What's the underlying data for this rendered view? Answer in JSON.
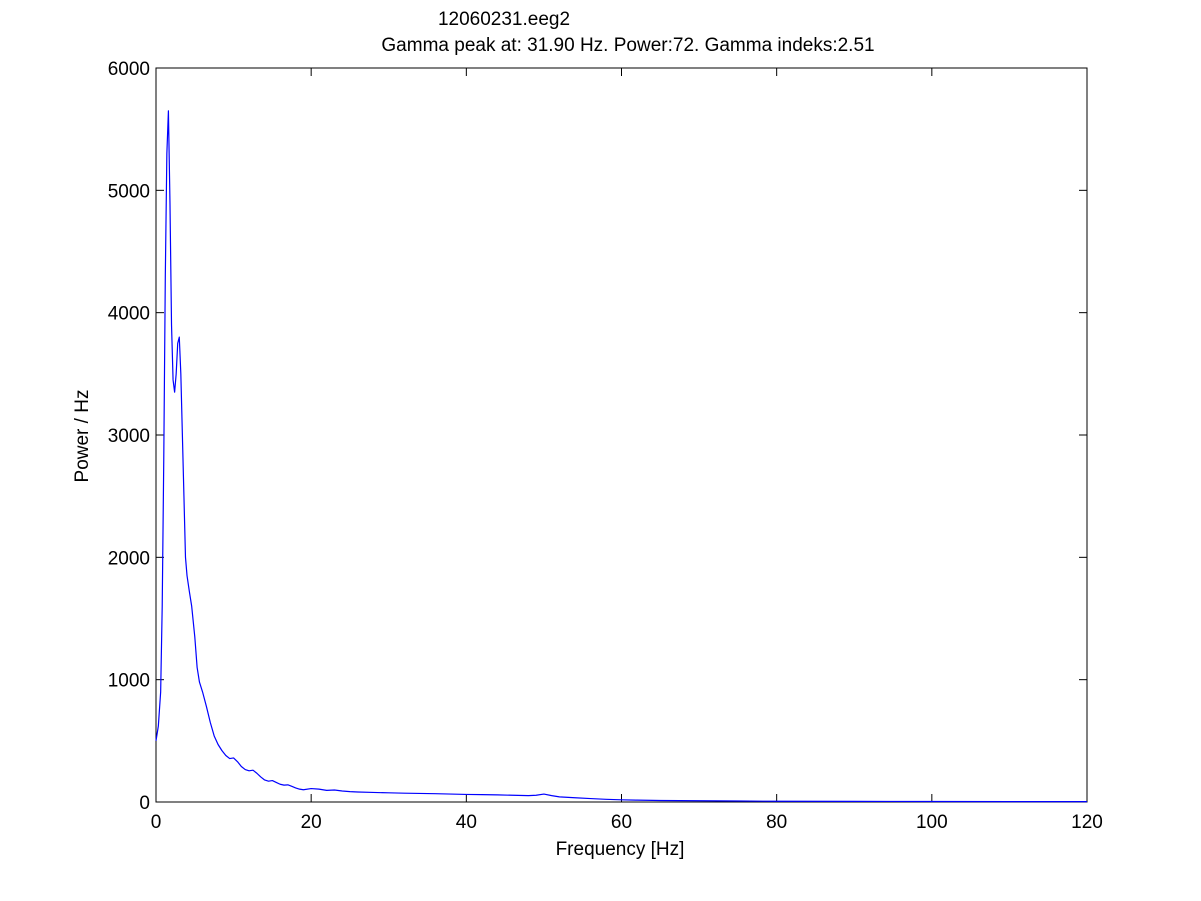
{
  "chart_data": {
    "type": "line",
    "title": "12060231.eeg2",
    "subtitle": "Gamma peak at: 31.90 Hz. Power:72. Gamma indeks:2.51",
    "xlabel": "Frequency [Hz]",
    "ylabel": "Power / Hz",
    "xlim": [
      0,
      120
    ],
    "ylim": [
      0,
      6000
    ],
    "xticks": [
      0,
      20,
      40,
      60,
      80,
      100,
      120
    ],
    "yticks": [
      0,
      1000,
      2000,
      3000,
      4000,
      5000,
      6000
    ],
    "grid": false,
    "series": [
      {
        "color": "#0000ff",
        "x": [
          0,
          0.3,
          0.6,
          0.8,
          1.0,
          1.2,
          1.4,
          1.6,
          1.8,
          2.0,
          2.2,
          2.4,
          2.6,
          2.8,
          3.0,
          3.2,
          3.4,
          3.6,
          3.8,
          4.0,
          4.3,
          4.6,
          5.0,
          5.3,
          5.6,
          6.0,
          6.5,
          7.0,
          7.5,
          8.0,
          8.5,
          9.0,
          9.5,
          10.0,
          10.5,
          11.0,
          11.5,
          12.0,
          12.5,
          13.0,
          13.5,
          14.0,
          14.5,
          15.0,
          15.5,
          16.0,
          16.5,
          17.0,
          17.5,
          18.0,
          18.5,
          19.0,
          20.0,
          21.0,
          22.0,
          23.0,
          24.0,
          25.0,
          26.0,
          28.0,
          30.0,
          32.0,
          34.0,
          36.0,
          38.0,
          40.0,
          42.0,
          44.0,
          46.0,
          48.0,
          49.0,
          50.0,
          51.0,
          52.0,
          54.0,
          56.0,
          58.0,
          60.0,
          62.0,
          65.0,
          70.0,
          75.0,
          80.0,
          90.0,
          100.0,
          110.0,
          120.0
        ],
        "values": [
          500,
          620,
          900,
          1600,
          2800,
          4300,
          5300,
          5650,
          4900,
          3900,
          3450,
          3350,
          3500,
          3750,
          3800,
          3500,
          3000,
          2500,
          2000,
          1850,
          1720,
          1600,
          1350,
          1100,
          980,
          900,
          780,
          650,
          540,
          470,
          420,
          380,
          355,
          360,
          330,
          290,
          265,
          255,
          260,
          235,
          205,
          180,
          170,
          175,
          160,
          145,
          138,
          140,
          128,
          115,
          105,
          100,
          110,
          105,
          95,
          98,
          90,
          85,
          82,
          78,
          75,
          72,
          70,
          68,
          65,
          62,
          60,
          58,
          55,
          52,
          55,
          65,
          52,
          42,
          35,
          28,
          22,
          18,
          15,
          12,
          10,
          8,
          6,
          5,
          4,
          3,
          3
        ]
      }
    ]
  }
}
